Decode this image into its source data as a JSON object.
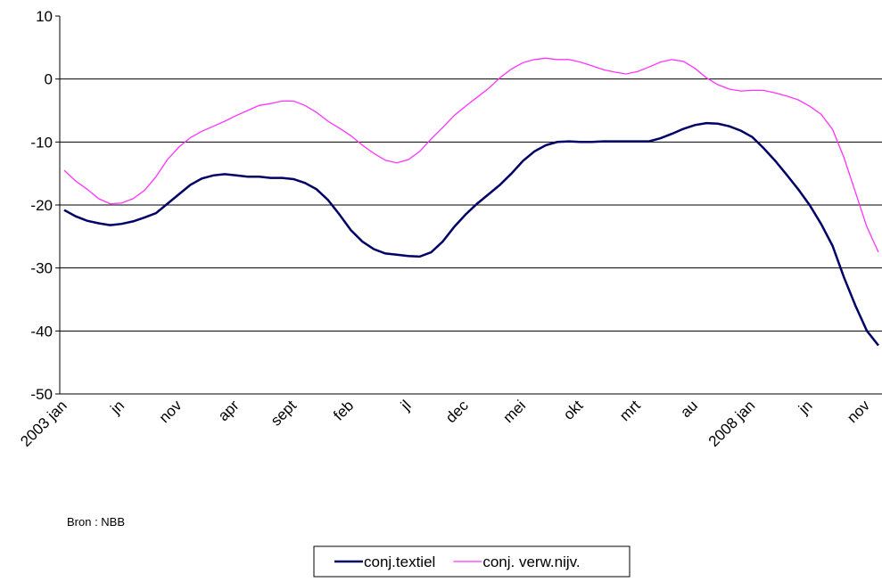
{
  "chart_data": {
    "type": "line",
    "categories": [
      "2003 jan",
      null,
      null,
      null,
      null,
      "jn",
      null,
      null,
      null,
      null,
      "nov",
      null,
      null,
      null,
      null,
      "apr",
      null,
      null,
      null,
      null,
      "sept",
      null,
      null,
      null,
      null,
      "feb",
      null,
      null,
      null,
      null,
      "jl",
      null,
      null,
      null,
      null,
      "dec",
      null,
      null,
      null,
      null,
      "mei",
      null,
      null,
      null,
      null,
      "okt",
      null,
      null,
      null,
      null,
      "mrt",
      null,
      null,
      null,
      null,
      "au",
      null,
      null,
      null,
      null,
      "2008 jan",
      null,
      null,
      null,
      null,
      "jn",
      null,
      null,
      null,
      null,
      "nov",
      null
    ],
    "series": [
      {
        "name": "conj.textiel",
        "color": "#000066",
        "values": [
          -20.8,
          -21.8,
          -22.5,
          -22.9,
          -23.2,
          -23.0,
          -22.6,
          -22.0,
          -21.3,
          -19.8,
          -18.3,
          -16.8,
          -15.8,
          -15.3,
          -15.1,
          -15.3,
          -15.5,
          -15.5,
          -15.7,
          -15.7,
          -15.9,
          -16.5,
          -17.5,
          -19.2,
          -21.5,
          -24.0,
          -25.8,
          -27.0,
          -27.7,
          -27.9,
          -28.1,
          -28.2,
          -27.5,
          -25.8,
          -23.5,
          -21.5,
          -19.8,
          -18.3,
          -16.8,
          -15.0,
          -13.0,
          -11.5,
          -10.5,
          -10.0,
          -9.9,
          -10.0,
          -10.0,
          -9.9,
          -9.9,
          -9.9,
          -9.9,
          -9.9,
          -9.4,
          -8.7,
          -7.9,
          -7.3,
          -7.0,
          -7.1,
          -7.5,
          -8.2,
          -9.2,
          -11.0,
          -13.0,
          -15.2,
          -17.5,
          -20.0,
          -23.0,
          -26.5,
          -31.5,
          -36.0,
          -40.0,
          -42.3
        ]
      },
      {
        "name": "conj. verw.nijv.",
        "color": "#ff33ff",
        "values": [
          -14.5,
          -16.2,
          -17.5,
          -19.0,
          -19.8,
          -19.7,
          -19.0,
          -17.7,
          -15.5,
          -12.8,
          -10.8,
          -9.3,
          -8.3,
          -7.5,
          -6.7,
          -5.8,
          -5.0,
          -4.2,
          -3.9,
          -3.5,
          -3.5,
          -4.2,
          -5.3,
          -6.7,
          -7.8,
          -9.0,
          -10.5,
          -11.8,
          -12.9,
          -13.3,
          -12.8,
          -11.5,
          -9.5,
          -7.7,
          -5.8,
          -4.3,
          -2.9,
          -1.5,
          0.2,
          1.6,
          2.6,
          3.1,
          3.3,
          3.1,
          3.1,
          2.7,
          2.1,
          1.5,
          1.1,
          0.8,
          1.2,
          1.9,
          2.7,
          3.1,
          2.8,
          1.7,
          0.2,
          -0.9,
          -1.6,
          -1.9,
          -1.8,
          -1.8,
          -2.2,
          -2.7,
          -3.3,
          -4.3,
          -5.6,
          -8.0,
          -12.5,
          -18.0,
          -23.5,
          -27.5
        ]
      }
    ],
    "ylim": [
      -50,
      10
    ],
    "yticks": [
      -50,
      -40,
      -30,
      -20,
      -10,
      0,
      10
    ],
    "grid": true,
    "note": "Bron : NBB"
  }
}
